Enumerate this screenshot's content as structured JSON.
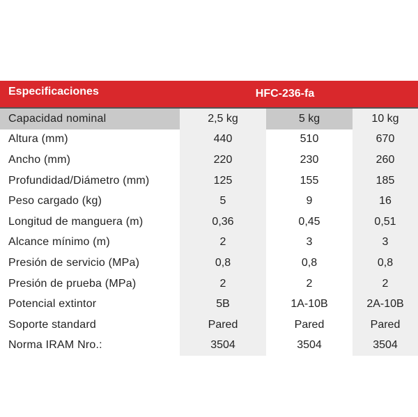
{
  "header": {
    "title": "Especificaciones",
    "model": "HFC-236-fa"
  },
  "rows": [
    {
      "label": "Capacidad nominal",
      "values": [
        "2,5 kg",
        "5 kg",
        "10 kg"
      ]
    },
    {
      "label": "Altura (mm)",
      "values": [
        "440",
        "510",
        "670"
      ]
    },
    {
      "label": "Ancho (mm)",
      "values": [
        "220",
        "230",
        "260"
      ]
    },
    {
      "label": "Profundidad/Diámetro (mm)",
      "values": [
        "125",
        "155",
        "185"
      ]
    },
    {
      "label": "Peso cargado (kg)",
      "values": [
        "5",
        "9",
        "16"
      ]
    },
    {
      "label": "Longitud de manguera (m)",
      "values": [
        "0,36",
        "0,45",
        "0,51"
      ]
    },
    {
      "label": "Alcance mínimo (m)",
      "values": [
        "2",
        "3",
        "3"
      ]
    },
    {
      "label": "Presión de servicio (MPa)",
      "values": [
        "0,8",
        "0,8",
        "0,8"
      ]
    },
    {
      "label": "Presión de prueba (MPa)",
      "values": [
        "2",
        "2",
        "2"
      ]
    },
    {
      "label": "Potencial extintor",
      "values": [
        "5B",
        "1A-10B",
        "2A-10B"
      ]
    },
    {
      "label": "Soporte standard",
      "values": [
        "Pared",
        "Pared",
        "Pared"
      ]
    },
    {
      "label": "Norma IRAM Nro.:",
      "values": [
        "3504",
        "3504",
        "3504"
      ]
    }
  ],
  "colors": {
    "header_bg": "#d9282c",
    "header_text": "#ffffff",
    "capacity_row_bg": "#c9c9c9",
    "shaded_column_bg": "#efefef"
  }
}
